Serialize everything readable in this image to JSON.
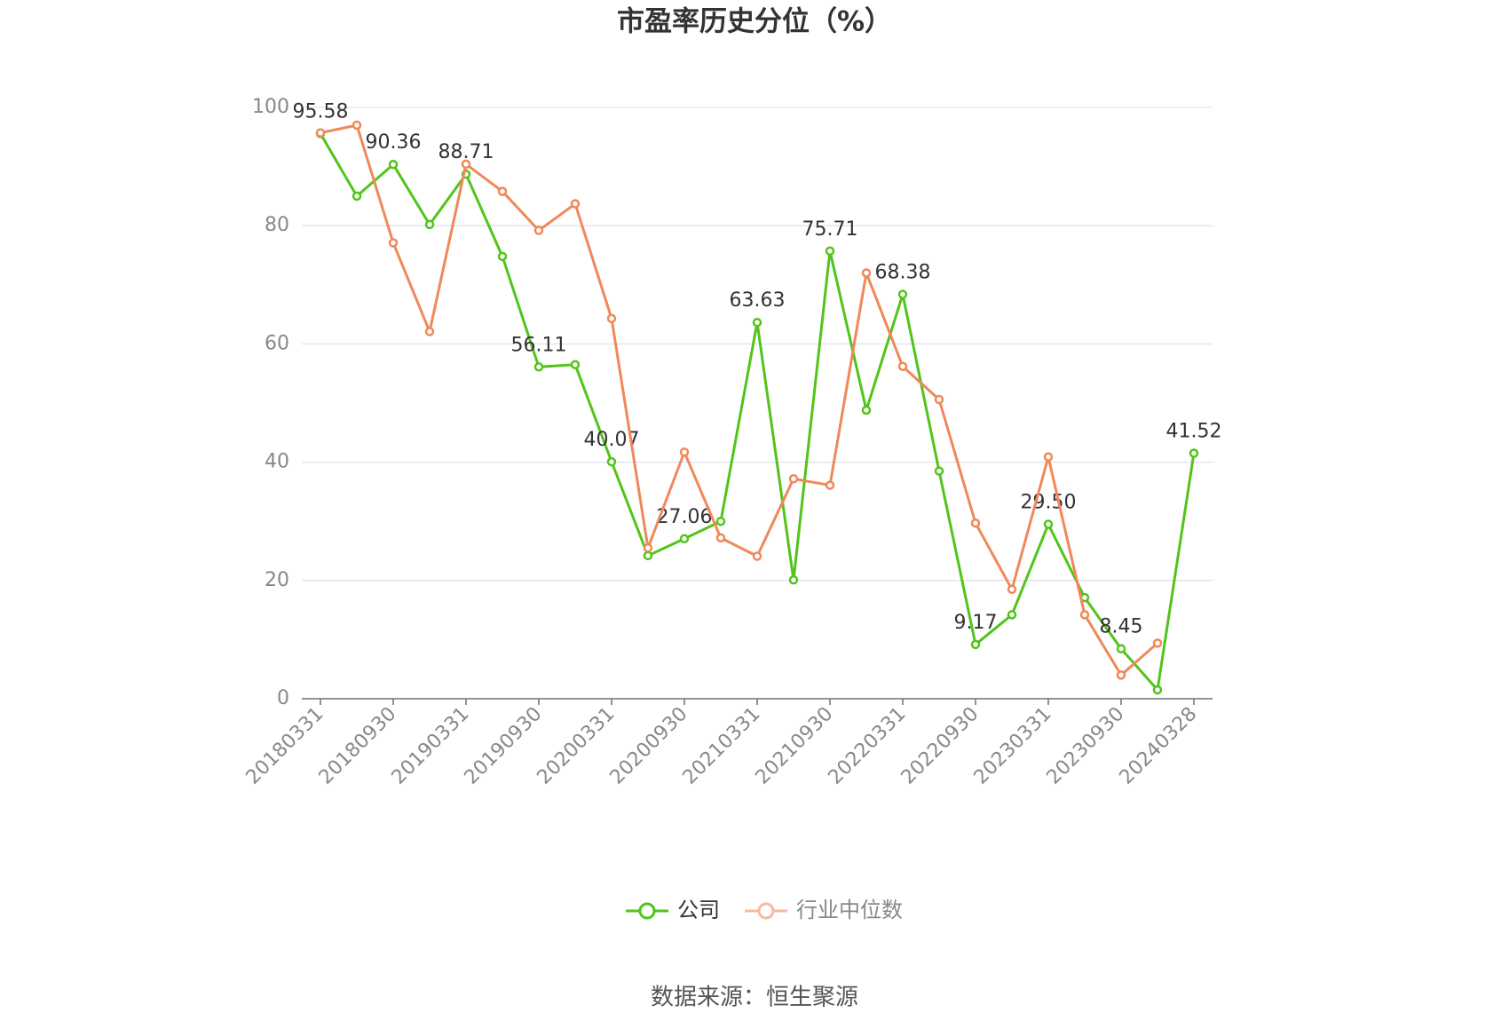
{
  "chart_data": {
    "type": "line",
    "title": "市盈率历史分位（%）",
    "source": "数据来源：恒生聚源",
    "categories": [
      "20180331",
      null,
      "20180930",
      null,
      "20190331",
      null,
      "20190930",
      null,
      "20200331",
      null,
      "20200930",
      null,
      "20210331",
      null,
      "20210930",
      null,
      "20220331",
      null,
      "20220930",
      null,
      "20230331",
      null,
      "20230930",
      null,
      "20240328"
    ],
    "series": [
      {
        "name": "公司",
        "color": "#52c41a",
        "values": [
          95.58,
          85.0,
          90.36,
          80.2,
          88.71,
          74.8,
          56.11,
          56.5,
          40.07,
          24.2,
          27.06,
          30.0,
          63.63,
          20.1,
          75.71,
          48.8,
          68.38,
          38.5,
          9.17,
          14.2,
          29.5,
          17.1,
          8.45,
          1.5,
          41.52
        ],
        "value_labels": [
          "95.58",
          null,
          "90.36",
          null,
          "88.71",
          null,
          "56.11",
          null,
          "40.07",
          null,
          "27.06",
          null,
          "63.63",
          null,
          "75.71",
          null,
          "68.38",
          null,
          "9.17",
          null,
          "29.50",
          null,
          "8.45",
          null,
          "41.52"
        ]
      },
      {
        "name": "行业中位数",
        "color": "#f0885a",
        "values": [
          95.7,
          97.0,
          77.1,
          62.1,
          90.4,
          85.8,
          79.2,
          83.7,
          64.3,
          25.5,
          41.7,
          27.2,
          24.1,
          37.2,
          36.1,
          72.0,
          56.2,
          50.6,
          29.7,
          18.5,
          40.9,
          14.2,
          4.0,
          9.4,
          null
        ]
      }
    ],
    "ylim": [
      0,
      100
    ],
    "yticks": [
      0,
      20,
      40,
      60,
      80,
      100
    ],
    "grid": true
  }
}
